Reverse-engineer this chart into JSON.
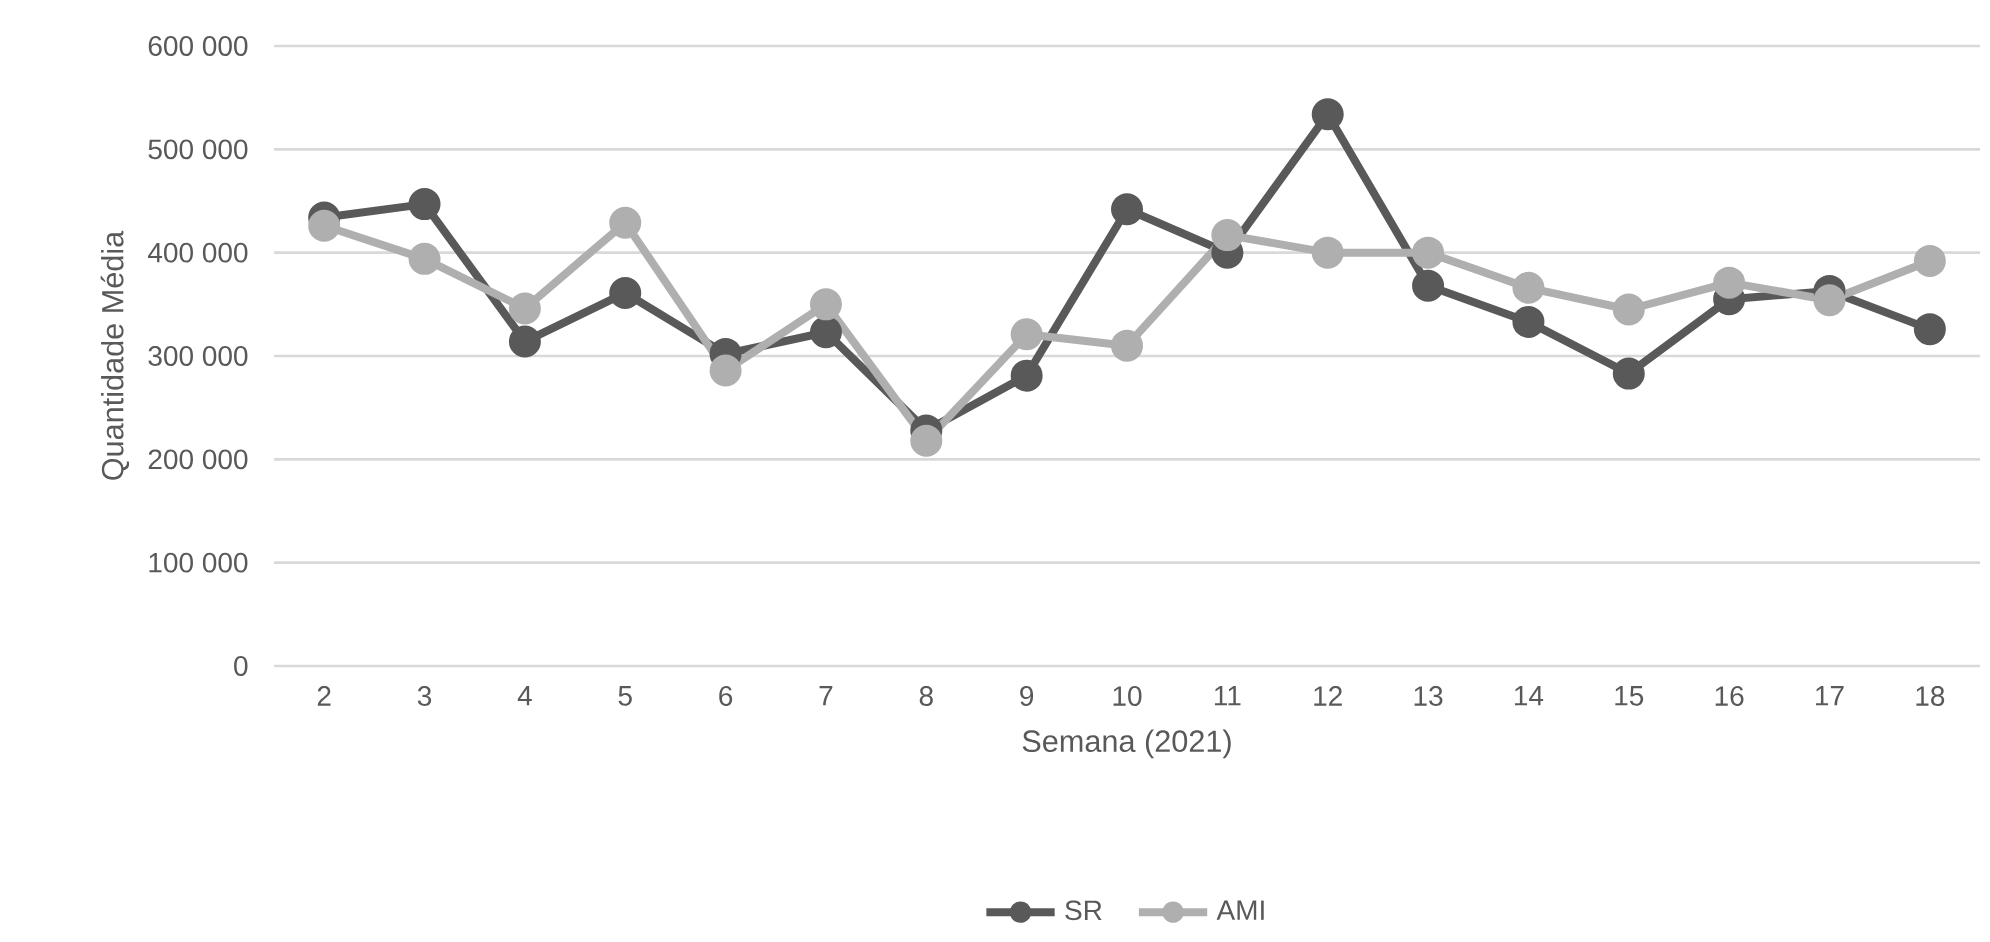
{
  "chart_data": {
    "type": "line",
    "xlabel": "Semana (2021)",
    "ylabel": "Quantidade Média",
    "categories": [
      "2",
      "3",
      "4",
      "5",
      "6",
      "7",
      "8",
      "9",
      "10",
      "11",
      "12",
      "13",
      "14",
      "15",
      "16",
      "17",
      "18"
    ],
    "series": [
      {
        "name": "SR",
        "color": "#595959",
        "values": [
          434000,
          447000,
          314000,
          361000,
          302000,
          323000,
          228000,
          281000,
          442000,
          400000,
          534000,
          368000,
          333000,
          283000,
          355000,
          363000,
          326000
        ]
      },
      {
        "name": "AMI",
        "color": "#afafaf",
        "values": [
          426000,
          394000,
          346000,
          429000,
          286000,
          350000,
          218000,
          321000,
          310000,
          417000,
          400000,
          400000,
          366000,
          345000,
          371000,
          354000,
          392000
        ]
      }
    ],
    "ylim": [
      0,
      600000
    ],
    "yticks": [
      {
        "value": 0,
        "label": "0"
      },
      {
        "value": 100000,
        "label": "100 000"
      },
      {
        "value": 200000,
        "label": "200 000"
      },
      {
        "value": 300000,
        "label": "300 000"
      },
      {
        "value": 400000,
        "label": "400 000"
      },
      {
        "value": 500000,
        "label": "500 000"
      },
      {
        "value": 600000,
        "label": "600 000"
      }
    ],
    "grid": "y",
    "legend": "bottom",
    "marker": "circle",
    "line_style": "solid"
  }
}
